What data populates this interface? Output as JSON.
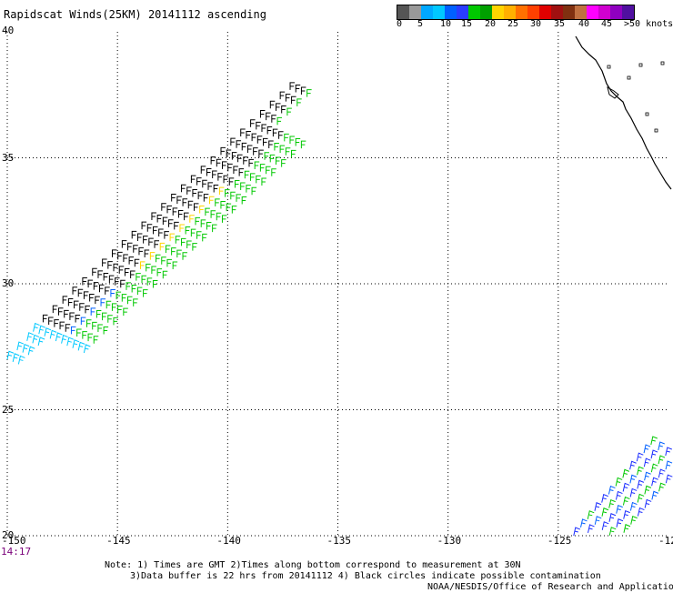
{
  "title": "Rapidscat Winds(25KM) 20141112 ascending",
  "time_label": "14:17",
  "legend": {
    "colors": [
      "#555555",
      "#999999",
      "#00a8ff",
      "#00c8ff",
      "#0060ff",
      "#2a3cff",
      "#00c800",
      "#00a000",
      "#ffd400",
      "#ffb000",
      "#ff7000",
      "#ff4000",
      "#e00000",
      "#a01010",
      "#803010",
      "#c07040",
      "#ff00ff",
      "#d000d0",
      "#9000c0",
      "#5010a0"
    ],
    "labels": [
      "0",
      "5",
      "10",
      "15",
      "20",
      "25",
      "30",
      "35",
      "40",
      "45",
      ">50 knots"
    ]
  },
  "axes": {
    "x_ticks": [
      "-150",
      "-145",
      "-140",
      "-135",
      "-130",
      "-125",
      "-12"
    ],
    "y_ticks": [
      "40",
      "35",
      "30",
      "25",
      "20"
    ]
  },
  "notes": [
    "Note: 1) Times are GMT 2)Times along bottom correspond to measurement at 30N",
    "3)Data buffer is 22 hrs from 20141112 4) Black circles indicate possible contamination",
    "NOAA/NESDIS/Office of Research and Applications"
  ],
  "map": {
    "lon_range": [
      -150,
      -120
    ],
    "lat_range": [
      20,
      40
    ],
    "grid": true,
    "swaths": [
      {
        "name": "",
        "lon_start": -150,
        "lat_start": 27.5,
        "lon_end": -137,
        "lat_end": 38.2
      },
      {
        "name": "",
        "lon_start": -124.3,
        "lat_start": 20,
        "lon_end": -120,
        "lat_end": 24
      }
    ]
  }
}
